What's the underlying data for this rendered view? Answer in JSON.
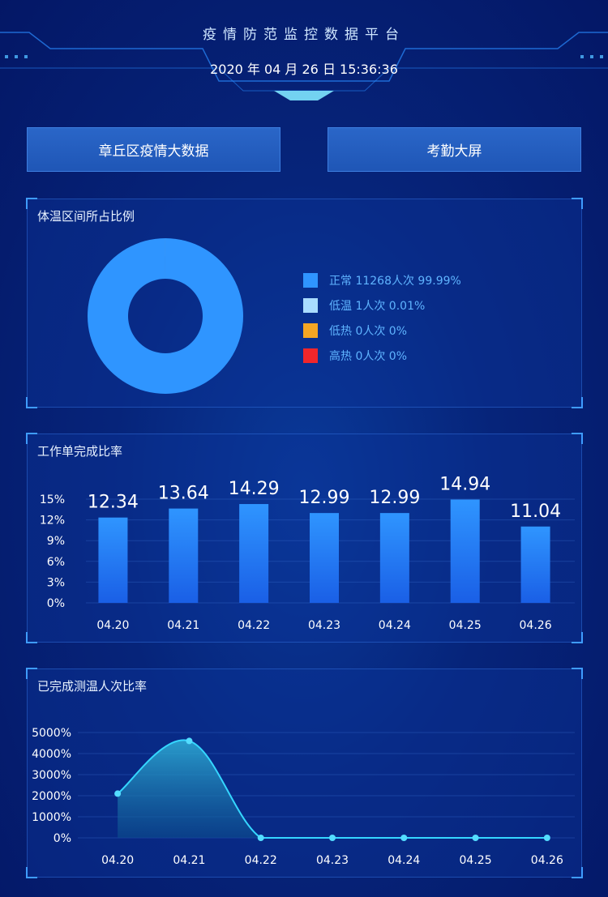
{
  "header": {
    "title": "疫情防范监控数据平台",
    "datetime": "2020 年 04 月 26 日 15:36:36"
  },
  "nav": {
    "left_label": "章丘区疫情大数据",
    "right_label": "考勤大屏"
  },
  "temp_panel": {
    "title": "体温区间所占比例",
    "legend": [
      {
        "label": "正常 11268人次 99.99%",
        "color": "#2f95ff"
      },
      {
        "label": "低温 1人次 0.01%",
        "color": "#a9dcff"
      },
      {
        "label": "低热 0人次 0%",
        "color": "#f5a623"
      },
      {
        "label": "高热 0人次 0%",
        "color": "#f0262b"
      }
    ]
  },
  "bar_panel": {
    "title": "工作单完成比率"
  },
  "line_panel": {
    "title": "已完成测温人次比率"
  },
  "chart_data": [
    {
      "type": "pie",
      "title": "体温区间所占比例",
      "categories": [
        "正常",
        "低温",
        "低热",
        "高热"
      ],
      "values": [
        99.99,
        0.01,
        0,
        0
      ]
    },
    {
      "type": "bar",
      "title": "工作单完成比率",
      "categories": [
        "04.20",
        "04.21",
        "04.22",
        "04.23",
        "04.24",
        "04.25",
        "04.26"
      ],
      "values": [
        12.34,
        13.64,
        14.29,
        12.99,
        12.99,
        14.94,
        11.04
      ],
      "yticks": [
        "0%",
        "3%",
        "6%",
        "9%",
        "12%",
        "15%"
      ],
      "ylim": [
        0,
        15
      ]
    },
    {
      "type": "area",
      "title": "已完成测温人次比率",
      "categories": [
        "04.20",
        "04.21",
        "04.22",
        "04.23",
        "04.24",
        "04.25",
        "04.26"
      ],
      "values": [
        2100,
        4600,
        0,
        0,
        0,
        0,
        0
      ],
      "yticks": [
        "0%",
        "1000%",
        "2000%",
        "3000%",
        "4000%",
        "5000%"
      ],
      "ylim": [
        0,
        5000
      ]
    }
  ]
}
